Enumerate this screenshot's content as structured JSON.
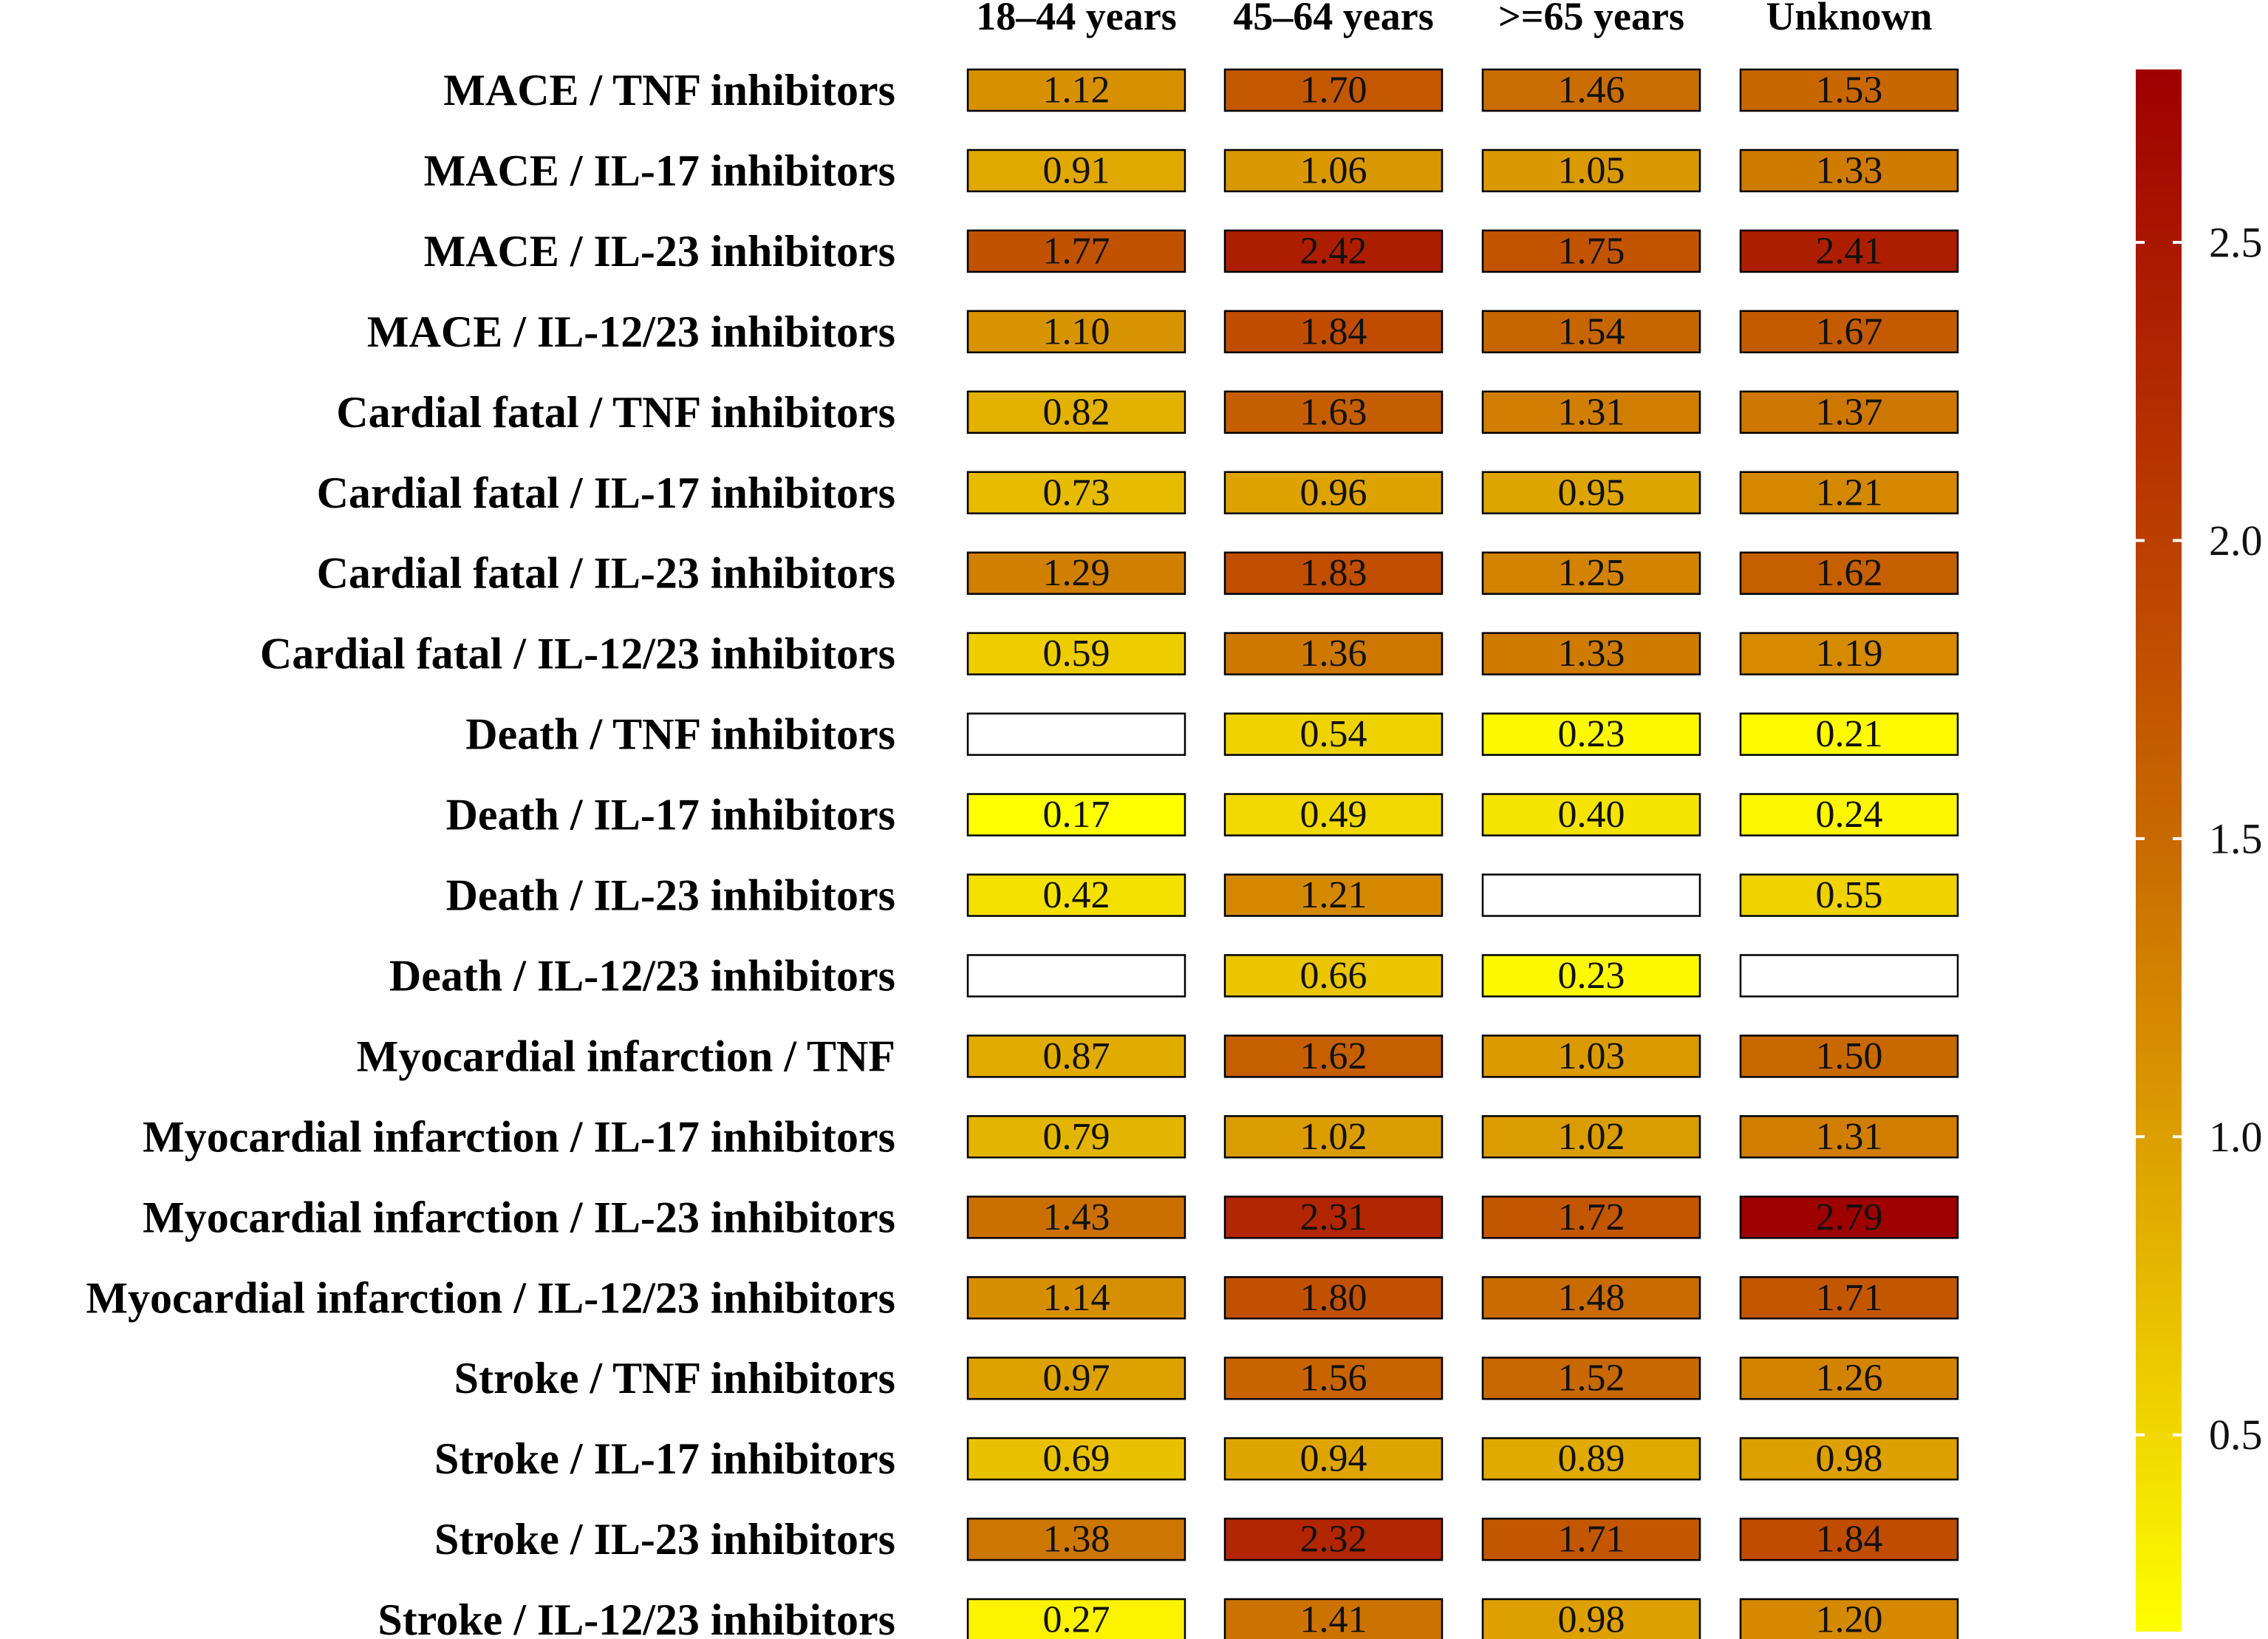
{
  "chart_data": {
    "type": "heatmap",
    "title": "",
    "xlabel": "",
    "ylabel": "",
    "columns": [
      "18–44 years",
      "45–64 years",
      ">=65 years",
      "Unknown"
    ],
    "rows": [
      "MACE / TNF inhibitors",
      "MACE / IL-17 inhibitors",
      "MACE / IL-23 inhibitors",
      "MACE / IL-12/23 inhibitors",
      "Cardial fatal / TNF inhibitors",
      "Cardial fatal / IL-17 inhibitors",
      "Cardial fatal / IL-23 inhibitors",
      "Cardial fatal / IL-12/23 inhibitors",
      "Death / TNF inhibitors",
      "Death / IL-17 inhibitors",
      "Death / IL-23 inhibitors",
      "Death / IL-12/23 inhibitors",
      "Myocardial infarction / TNF",
      "Myocardial infarction / IL-17 inhibitors",
      "Myocardial infarction / IL-23 inhibitors",
      "Myocardial infarction / IL-12/23 inhibitors",
      "Stroke / TNF inhibitors",
      "Stroke / IL-17 inhibitors",
      "Stroke / IL-23 inhibitors",
      "Stroke / IL-12/23 inhibitors"
    ],
    "values": [
      [
        "1.12",
        "1.70",
        "1.46",
        "1.53"
      ],
      [
        "0.91",
        "1.06",
        "1.05",
        "1.33"
      ],
      [
        "1.77",
        "2.42",
        "1.75",
        "2.41"
      ],
      [
        "1.10",
        "1.84",
        "1.54",
        "1.67"
      ],
      [
        "0.82",
        "1.63",
        "1.31",
        "1.37"
      ],
      [
        "0.73",
        "0.96",
        "0.95",
        "1.21"
      ],
      [
        "1.29",
        "1.83",
        "1.25",
        "1.62"
      ],
      [
        "0.59",
        "1.36",
        "1.33",
        "1.19"
      ],
      [
        null,
        "0.54",
        "0.23",
        "0.21"
      ],
      [
        "0.17",
        "0.49",
        "0.40",
        "0.24"
      ],
      [
        "0.42",
        "1.21",
        null,
        "0.55"
      ],
      [
        null,
        "0.66",
        "0.23",
        null
      ],
      [
        "0.87",
        "1.62",
        "1.03",
        "1.50"
      ],
      [
        "0.79",
        "1.02",
        "1.02",
        "1.31"
      ],
      [
        "1.43",
        "2.31",
        "1.72",
        "2.79"
      ],
      [
        "1.14",
        "1.80",
        "1.48",
        "1.71"
      ],
      [
        "0.97",
        "1.56",
        "1.52",
        "1.26"
      ],
      [
        "0.69",
        "0.94",
        "0.89",
        "0.98"
      ],
      [
        "1.38",
        "2.32",
        "1.71",
        "1.84"
      ],
      [
        "0.27",
        "1.41",
        "0.98",
        "1.20"
      ]
    ],
    "colorbar": {
      "range": [
        0.17,
        2.79
      ],
      "ticks": [
        0.5,
        1.0,
        1.5,
        2.0,
        2.5
      ],
      "tick_labels": [
        "0.5",
        "1.0",
        "1.5",
        "2.0",
        "2.5"
      ],
      "colors": [
        "#ffff00",
        "#e3b100",
        "#c96b00",
        "#b83300",
        "#9e0000"
      ]
    },
    "legend": "right"
  }
}
